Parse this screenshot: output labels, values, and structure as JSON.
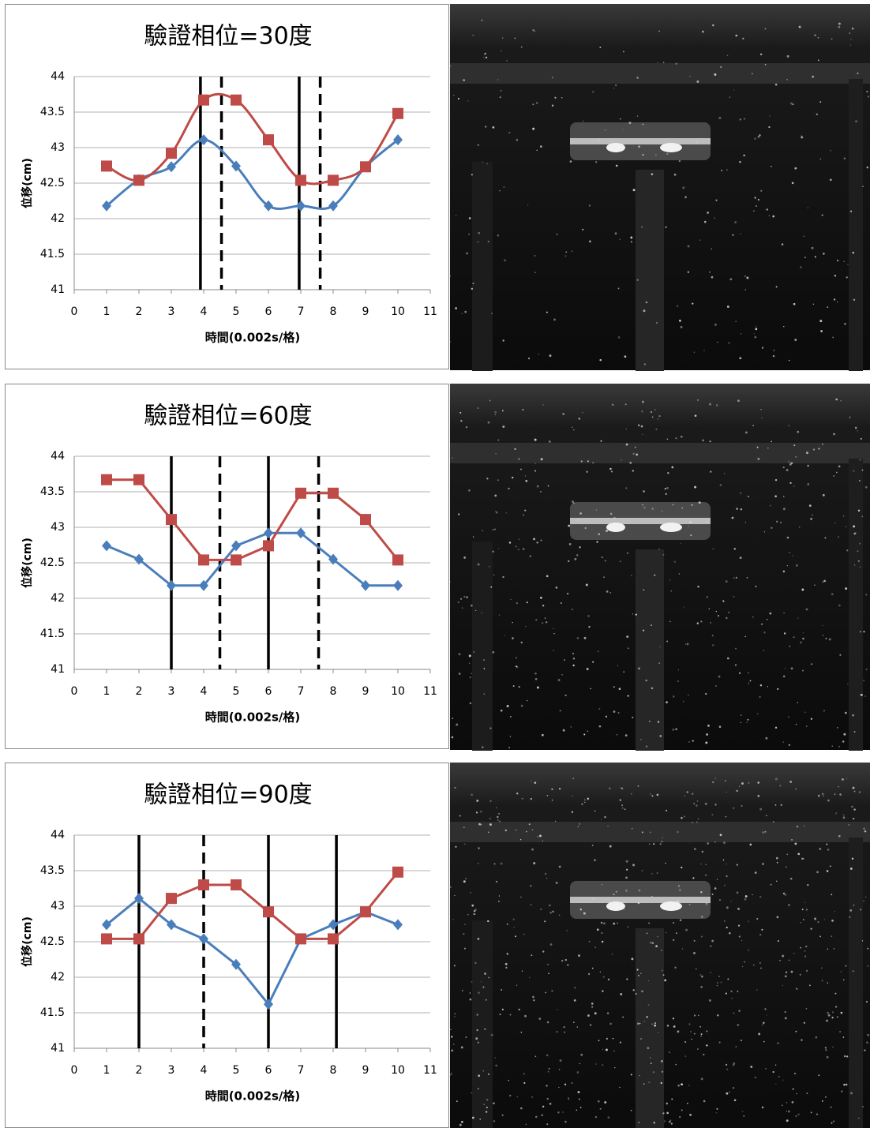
{
  "chart_data": [
    {
      "type": "line",
      "title": "驗證相位=30度",
      "xlabel": "時間(0.002s/格)",
      "ylabel": "位移(cm)",
      "x": [
        1,
        2,
        3,
        4,
        5,
        6,
        7,
        8,
        9,
        10
      ],
      "smooth": true,
      "grid": true,
      "series": [
        {
          "color": "#4a7ebb",
          "marker": "diamond",
          "values": [
            42.18,
            42.55,
            42.73,
            43.11,
            42.74,
            42.18,
            42.18,
            42.18,
            42.73,
            43.11
          ]
        },
        {
          "color": "#be4b48",
          "marker": "square",
          "values": [
            42.74,
            42.54,
            42.92,
            43.67,
            43.67,
            43.11,
            42.54,
            42.54,
            42.73,
            43.48
          ]
        }
      ],
      "vlines": [
        {
          "x": 3.9,
          "style": "solid"
        },
        {
          "x": 4.55,
          "style": "dashed"
        },
        {
          "x": 6.95,
          "style": "solid"
        },
        {
          "x": 7.6,
          "style": "dashed"
        }
      ],
      "xlim": [
        0,
        11
      ],
      "xticks": [
        0,
        1,
        2,
        3,
        4,
        5,
        6,
        7,
        8,
        9,
        10,
        11
      ],
      "ylim": [
        41,
        44
      ],
      "yticks": [
        41,
        41.5,
        42,
        42.5,
        43,
        43.5,
        44
      ]
    },
    {
      "type": "line",
      "title": "驗證相位=60度",
      "xlabel": "時間(0.002s/格)",
      "ylabel": "位移(cm)",
      "x": [
        1,
        2,
        3,
        4,
        5,
        6,
        7,
        8,
        9,
        10
      ],
      "smooth": false,
      "grid": true,
      "series": [
        {
          "color": "#4a7ebb",
          "marker": "diamond",
          "values": [
            42.74,
            42.55,
            42.18,
            42.18,
            42.74,
            42.92,
            42.92,
            42.55,
            42.18,
            42.18
          ]
        },
        {
          "color": "#be4b48",
          "marker": "square",
          "values": [
            43.67,
            43.67,
            43.11,
            42.54,
            42.54,
            42.74,
            43.48,
            43.48,
            43.11,
            42.54
          ]
        }
      ],
      "vlines": [
        {
          "x": 3,
          "style": "solid"
        },
        {
          "x": 4.5,
          "style": "dashed"
        },
        {
          "x": 6,
          "style": "solid"
        },
        {
          "x": 7.55,
          "style": "dashed"
        }
      ],
      "xlim": [
        0,
        11
      ],
      "xticks": [
        0,
        1,
        2,
        3,
        4,
        5,
        6,
        7,
        8,
        9,
        10,
        11
      ],
      "ylim": [
        41,
        44
      ],
      "yticks": [
        41,
        41.5,
        42,
        42.5,
        43,
        43.5,
        44
      ]
    },
    {
      "type": "line",
      "title": "驗證相位=90度",
      "xlabel": "時間(0.002s/格)",
      "ylabel": "位移(cm)",
      "x": [
        1,
        2,
        3,
        4,
        5,
        6,
        7,
        8,
        9,
        10
      ],
      "smooth": false,
      "grid": true,
      "series": [
        {
          "color": "#4a7ebb",
          "marker": "diamond",
          "values": [
            42.74,
            43.11,
            42.74,
            42.54,
            42.18,
            41.62,
            42.54,
            42.74,
            42.92,
            42.74
          ]
        },
        {
          "color": "#be4b48",
          "marker": "square",
          "values": [
            42.54,
            42.54,
            43.11,
            43.3,
            43.3,
            42.92,
            42.54,
            42.54,
            42.92,
            43.48
          ]
        }
      ],
      "vlines": [
        {
          "x": 2,
          "style": "solid"
        },
        {
          "x": 4,
          "style": "dashed"
        },
        {
          "x": 6,
          "style": "solid"
        },
        {
          "x": 8.1,
          "style": "solid"
        }
      ],
      "xlim": [
        0,
        11
      ],
      "xticks": [
        0,
        1,
        2,
        3,
        4,
        5,
        6,
        7,
        8,
        9,
        10,
        11
      ],
      "ylim": [
        41,
        44
      ],
      "yticks": [
        41,
        41.5,
        42,
        42.5,
        43,
        43.5,
        44
      ]
    }
  ]
}
